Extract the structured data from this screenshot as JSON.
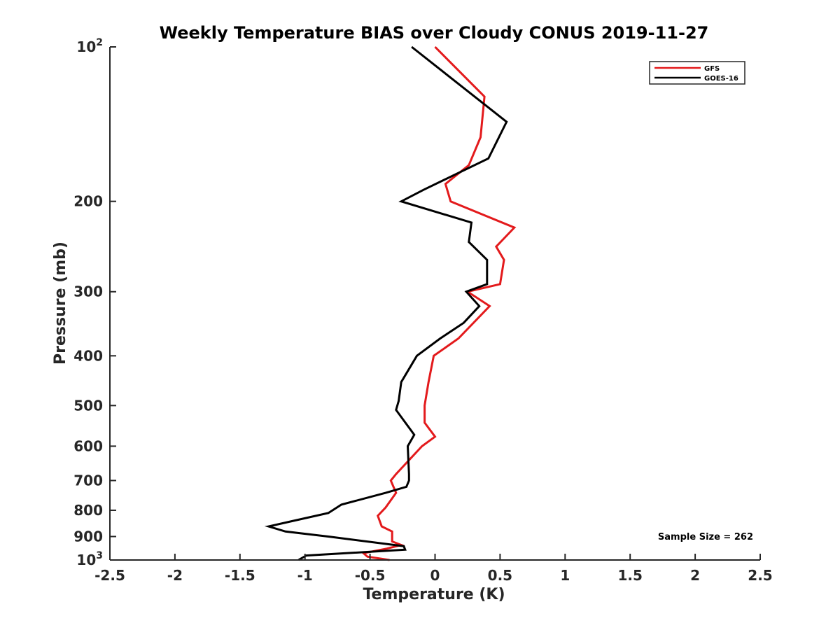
{
  "chart_data": {
    "type": "line",
    "title": "Weekly Temperature BIAS over Cloudy CONUS 2019-11-27",
    "xlabel": "Temperature (K)",
    "ylabel": "Pressure (mb)",
    "xlim": [
      -2.5,
      2.5
    ],
    "ylim": [
      100,
      1000
    ],
    "y_scale": "log",
    "y_reversed": true,
    "x_ticks": [
      "-2.5",
      "-2",
      "-1.5",
      "-1",
      "-0.5",
      "0",
      "0.5",
      "1",
      "1.5",
      "2",
      "2.5"
    ],
    "y_ticks": [
      {
        "value": 100,
        "base": "10",
        "exp": "2"
      },
      {
        "value": 200,
        "label": "200"
      },
      {
        "value": 300,
        "label": "300"
      },
      {
        "value": 400,
        "label": "400"
      },
      {
        "value": 500,
        "label": "500"
      },
      {
        "value": 600,
        "label": "600"
      },
      {
        "value": 700,
        "label": "700"
      },
      {
        "value": 800,
        "label": "800"
      },
      {
        "value": 900,
        "label": "900"
      },
      {
        "value": 1000,
        "base": "10",
        "exp": "3"
      }
    ],
    "legend_position": "top-right",
    "grid": false,
    "annotation": "Sample Size = 262",
    "series": [
      {
        "name": "GFS",
        "color": "#e31a1c",
        "points": [
          [
            0.0,
            100
          ],
          [
            0.38,
            125
          ],
          [
            0.35,
            150
          ],
          [
            0.26,
            170
          ],
          [
            0.08,
            185
          ],
          [
            0.12,
            200
          ],
          [
            0.61,
            225
          ],
          [
            0.47,
            245
          ],
          [
            0.53,
            260
          ],
          [
            0.5,
            290
          ],
          [
            0.25,
            300
          ],
          [
            0.42,
            320
          ],
          [
            0.18,
            370
          ],
          [
            -0.01,
            400
          ],
          [
            -0.05,
            450
          ],
          [
            -0.08,
            500
          ],
          [
            -0.08,
            540
          ],
          [
            0.0,
            575
          ],
          [
            -0.1,
            600
          ],
          [
            -0.3,
            680
          ],
          [
            -0.34,
            700
          ],
          [
            -0.3,
            740
          ],
          [
            -0.38,
            790
          ],
          [
            -0.44,
            820
          ],
          [
            -0.41,
            860
          ],
          [
            -0.33,
            880
          ],
          [
            -0.33,
            920
          ],
          [
            -0.26,
            935
          ],
          [
            -0.37,
            950
          ],
          [
            -0.55,
            970
          ],
          [
            -0.52,
            985
          ],
          [
            -0.35,
            1000
          ]
        ]
      },
      {
        "name": "GOES-16",
        "color": "#000000",
        "points": [
          [
            -0.18,
            100
          ],
          [
            0.55,
            140
          ],
          [
            0.41,
            165
          ],
          [
            -0.09,
            190
          ],
          [
            -0.26,
            200
          ],
          [
            0.28,
            220
          ],
          [
            0.26,
            240
          ],
          [
            0.4,
            260
          ],
          [
            0.4,
            290
          ],
          [
            0.24,
            300
          ],
          [
            0.34,
            320
          ],
          [
            0.22,
            345
          ],
          [
            0.04,
            370
          ],
          [
            -0.14,
            400
          ],
          [
            -0.26,
            450
          ],
          [
            -0.28,
            490
          ],
          [
            -0.3,
            510
          ],
          [
            -0.16,
            570
          ],
          [
            -0.21,
            600
          ],
          [
            -0.2,
            680
          ],
          [
            -0.2,
            700
          ],
          [
            -0.22,
            720
          ],
          [
            -0.38,
            740
          ],
          [
            -0.72,
            780
          ],
          [
            -0.82,
            810
          ],
          [
            -1.1,
            840
          ],
          [
            -1.28,
            860
          ],
          [
            -1.15,
            880
          ],
          [
            -0.82,
            900
          ],
          [
            -0.24,
            940
          ],
          [
            -0.23,
            955
          ],
          [
            -0.99,
            980
          ],
          [
            -1.05,
            1000
          ]
        ]
      }
    ]
  }
}
